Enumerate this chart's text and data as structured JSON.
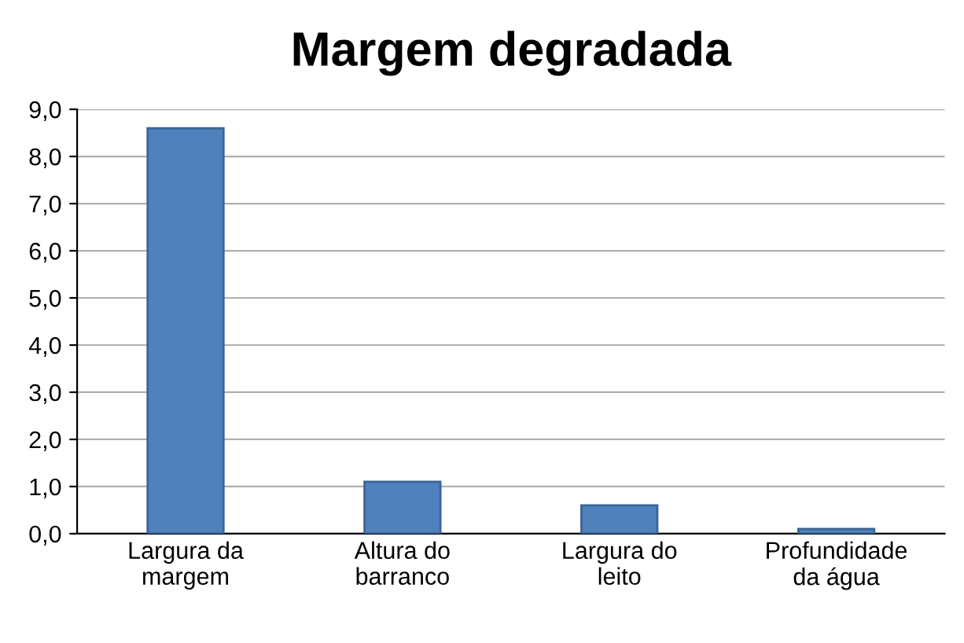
{
  "chart_data": {
    "type": "bar",
    "title": "Margem degradada",
    "categories": [
      "Largura da\nmargem",
      "Altura do\nbarranco",
      "Largura do\nleito",
      "Profundidade\nda água"
    ],
    "values": [
      8.6,
      1.1,
      0.6,
      0.1
    ],
    "color": "#4f81bd",
    "ylim": [
      0,
      9
    ],
    "yticks": [
      {
        "value": 0,
        "label": "0,0"
      },
      {
        "value": 1,
        "label": "1,0"
      },
      {
        "value": 2,
        "label": "2,0"
      },
      {
        "value": 3,
        "label": "3,0"
      },
      {
        "value": 4,
        "label": "4,0"
      },
      {
        "value": 5,
        "label": "5,0"
      },
      {
        "value": 6,
        "label": "6,0"
      },
      {
        "value": 7,
        "label": "7,0"
      },
      {
        "value": 8,
        "label": "8,0"
      },
      {
        "value": 9,
        "label": "9,0"
      }
    ],
    "grid": "y"
  }
}
